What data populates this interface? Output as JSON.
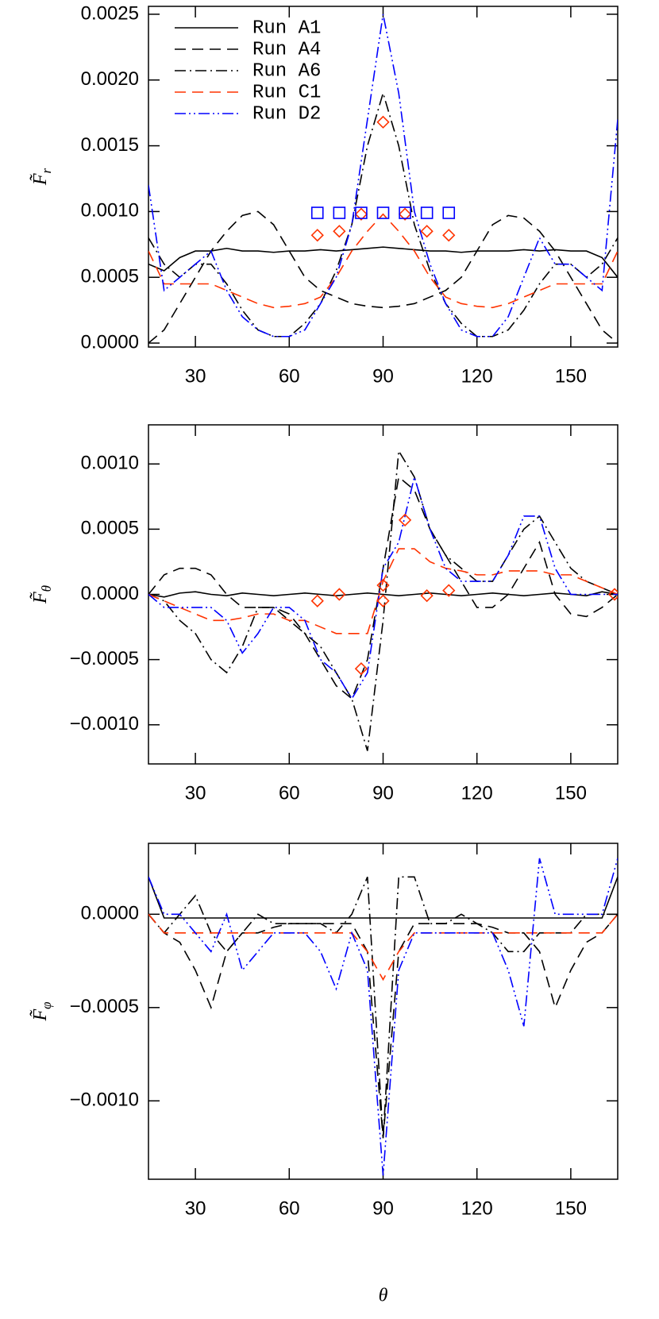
{
  "chart_data": [
    {
      "type": "line",
      "ylabel": "F̃",
      "ylabel_sub": "r",
      "legend": "upper left",
      "xlim": [
        15,
        165
      ],
      "xticks": [
        30,
        60,
        90,
        120,
        150
      ],
      "ylim": [
        -3e-05,
        0.00256
      ],
      "yticks": [
        {
          "value": 0,
          "label": "0.0000"
        },
        {
          "value": 0.0005,
          "label": "0.0005"
        },
        {
          "value": 0.001,
          "label": "0.0010"
        },
        {
          "value": 0.0015,
          "label": "0.0015"
        },
        {
          "value": 0.002,
          "label": "0.0020"
        },
        {
          "value": 0.0025,
          "label": "0.0025"
        }
      ],
      "x": [
        15,
        20,
        25,
        30,
        35,
        40,
        45,
        50,
        55,
        60,
        65,
        70,
        75,
        80,
        85,
        90,
        95,
        100,
        105,
        110,
        115,
        120,
        125,
        130,
        135,
        140,
        145,
        150,
        155,
        160,
        165
      ],
      "series": [
        {
          "name": "Run A1",
          "color": "#000000",
          "dash": "solid",
          "values": [
            0.0006,
            0.00055,
            0.00065,
            0.0007,
            0.0007,
            0.00072,
            0.0007,
            0.0007,
            0.00069,
            0.0007,
            0.0007,
            0.00071,
            0.0007,
            0.00071,
            0.00072,
            0.00073,
            0.00072,
            0.00071,
            0.0007,
            0.0007,
            0.00069,
            0.0007,
            0.0007,
            0.0007,
            0.00071,
            0.0007,
            0.00071,
            0.0007,
            0.0007,
            0.00065,
            0.0005
          ]
        },
        {
          "name": "Run A4",
          "color": "#000000",
          "dash": "dashed",
          "values": [
            0.0,
            0.0001,
            0.0003,
            0.0005,
            0.0007,
            0.00085,
            0.00097,
            0.001,
            0.0009,
            0.0007,
            0.0005,
            0.0004,
            0.00035,
            0.0003,
            0.00028,
            0.00027,
            0.00028,
            0.0003,
            0.00035,
            0.0004,
            0.0005,
            0.0007,
            0.0009,
            0.00097,
            0.00095,
            0.00085,
            0.0007,
            0.0005,
            0.0003,
            0.0001,
            0.0
          ]
        },
        {
          "name": "Run A6",
          "color": "#000000",
          "dash": "dashdot",
          "values": [
            0.0008,
            0.0006,
            0.0005,
            0.0006,
            0.0006,
            0.00045,
            0.00025,
            0.0001,
            5e-05,
            5e-05,
            0.00015,
            0.0003,
            0.00055,
            0.0009,
            0.0015,
            0.0019,
            0.0015,
            0.0009,
            0.00055,
            0.0003,
            0.00015,
            5e-05,
            5e-05,
            0.0001,
            0.00025,
            0.00045,
            0.0006,
            0.0006,
            0.0005,
            0.0006,
            0.0008
          ]
        },
        {
          "name": "Run C1",
          "color": "#ff3300",
          "dash": "dashed",
          "values": [
            0.0007,
            0.00045,
            0.00045,
            0.00045,
            0.00045,
            0.0004,
            0.00035,
            0.0003,
            0.00027,
            0.00028,
            0.0003,
            0.00035,
            0.0005,
            0.0007,
            0.00085,
            0.00098,
            0.00085,
            0.0007,
            0.0005,
            0.00035,
            0.0003,
            0.00028,
            0.00027,
            0.0003,
            0.00035,
            0.0004,
            0.00045,
            0.00045,
            0.00045,
            0.00045,
            0.0007
          ]
        },
        {
          "name": "Run D2",
          "color": "#0000ff",
          "dash": "dashdotdot",
          "values": [
            0.0012,
            0.0004,
            0.0005,
            0.0006,
            0.0007,
            0.0004,
            0.0002,
            0.0001,
            5e-05,
            5e-05,
            0.0001,
            0.0003,
            0.0005,
            0.0009,
            0.0017,
            0.0025,
            0.0019,
            0.001,
            0.0006,
            0.0003,
            0.0001,
            5e-05,
            5e-05,
            0.0002,
            0.0005,
            0.0008,
            0.0006,
            0.0006,
            0.0005,
            0.0004,
            0.0017
          ]
        }
      ],
      "markers": [
        {
          "shape": "diamond",
          "color": "#ff3300",
          "x": [
            69,
            76,
            83,
            90,
            97,
            104,
            111
          ],
          "values": [
            0.00082,
            0.00085,
            0.00098,
            0.00168,
            0.00098,
            0.00085,
            0.00082
          ]
        },
        {
          "shape": "square",
          "color": "#0000ff",
          "x": [
            69,
            76,
            83,
            90,
            97,
            104,
            111
          ],
          "values": [
            0.00099,
            0.00099,
            0.00099,
            0.00099,
            0.00099,
            0.00099,
            0.00099
          ]
        }
      ]
    },
    {
      "type": "line",
      "ylabel": "F̃",
      "ylabel_sub": "θ",
      "xlim": [
        15,
        165
      ],
      "xticks": [
        30,
        60,
        90,
        120,
        150
      ],
      "ylim": [
        -0.0013,
        0.0013
      ],
      "yticks": [
        {
          "value": -0.001,
          "label": "−0.0010"
        },
        {
          "value": -0.0005,
          "label": "−0.0005"
        },
        {
          "value": 0,
          "label": "0.0000"
        },
        {
          "value": 0.0005,
          "label": "0.0005"
        },
        {
          "value": 0.001,
          "label": "0.0010"
        }
      ],
      "x": [
        15,
        20,
        25,
        30,
        35,
        40,
        45,
        50,
        55,
        60,
        65,
        70,
        75,
        80,
        85,
        90,
        95,
        100,
        105,
        110,
        115,
        120,
        125,
        130,
        135,
        140,
        145,
        150,
        155,
        160,
        165
      ],
      "series": [
        {
          "color": "#000000",
          "dash": "solid",
          "values": [
            0.0,
            -2e-05,
            1e-05,
            2e-05,
            0.0,
            -1e-05,
            1e-05,
            0.0,
            -1e-05,
            0.0,
            1e-05,
            0.0,
            -1e-05,
            0.0,
            1e-05,
            0.0,
            -1e-05,
            0.0,
            1e-05,
            0.0,
            -1e-05,
            0.0,
            1e-05,
            0.0,
            -1e-05,
            0.0,
            1e-05,
            0.0,
            -1e-05,
            2e-05,
            0.0
          ]
        },
        {
          "color": "#000000",
          "dash": "dashed",
          "values": [
            0.0,
            0.00015,
            0.0002,
            0.0002,
            0.00015,
            0.0,
            -0.0001,
            -0.0001,
            -0.0001,
            -0.00015,
            -0.0003,
            -0.0005,
            -0.0007,
            -0.0008,
            -0.0005,
            0.0002,
            0.0009,
            0.0008,
            0.0005,
            0.0003,
            0.0001,
            -0.0001,
            -0.0001,
            0.0,
            0.0002,
            0.0004,
            0.0,
            -0.00015,
            -0.00017,
            -0.0001,
            0.0
          ]
        },
        {
          "color": "#000000",
          "dash": "dashdot",
          "values": [
            0.0,
            -5e-05,
            -0.0002,
            -0.0003,
            -0.0005,
            -0.0006,
            -0.0004,
            -0.0001,
            -0.0001,
            -0.0002,
            -0.0003,
            -0.0004,
            -0.0006,
            -0.0008,
            -0.0012,
            -0.0002,
            0.0011,
            0.0009,
            0.0005,
            0.0003,
            0.0002,
            0.0001,
            0.0001,
            0.0003,
            0.0005,
            0.0006,
            0.0004,
            0.0002,
            0.0001,
            5e-05,
            0.0
          ]
        },
        {
          "color": "#ff3300",
          "dash": "dashed",
          "values": [
            0.0,
            -5e-05,
            -0.0001,
            -0.00015,
            -0.0002,
            -0.0002,
            -0.00018,
            -0.00015,
            -0.00015,
            -0.0002,
            -0.0002,
            -0.00025,
            -0.0003,
            -0.0003,
            -0.0003,
            0.0001,
            0.00035,
            0.00035,
            0.00025,
            0.0002,
            0.00018,
            0.00015,
            0.00015,
            0.00018,
            0.00018,
            0.00018,
            0.00015,
            0.00015,
            0.0001,
            5e-05,
            0.0
          ]
        },
        {
          "color": "#0000ff",
          "dash": "dashdotdot",
          "values": [
            0.0,
            -0.0001,
            -0.0001,
            -0.0001,
            -0.0001,
            -0.0002,
            -0.00045,
            -0.0003,
            -0.0001,
            -0.0001,
            -0.0002,
            -0.0005,
            -0.0006,
            -0.0008,
            -0.0006,
            0.0002,
            0.0004,
            0.0009,
            0.0005,
            0.0002,
            0.0001,
            0.0001,
            0.0001,
            0.0003,
            0.0006,
            0.0006,
            0.0002,
            0.0,
            0.0,
            0.0,
            0.0
          ]
        }
      ],
      "markers": [
        {
          "shape": "diamond",
          "color": "#ff3300",
          "x": [
            69,
            76,
            83,
            90,
            90,
            97,
            104,
            111,
            164
          ],
          "values": [
            -5e-05,
            0.0,
            -0.00057,
            -5e-05,
            7e-05,
            0.00057,
            -1e-05,
            3e-05,
            0.0
          ]
        }
      ]
    },
    {
      "type": "line",
      "ylabel": "F̃",
      "ylabel_sub": "φ",
      "xlabel": "θ",
      "xlim": [
        15,
        165
      ],
      "xticks": [
        30,
        60,
        90,
        120,
        150
      ],
      "ylim": [
        -0.00142,
        0.00038
      ],
      "yticks": [
        {
          "value": -0.001,
          "label": "−0.0010"
        },
        {
          "value": -0.0005,
          "label": "−0.0005"
        },
        {
          "value": 0,
          "label": "0.0000"
        }
      ],
      "x": [
        15,
        20,
        25,
        30,
        35,
        40,
        45,
        50,
        55,
        60,
        65,
        70,
        75,
        80,
        85,
        90,
        95,
        100,
        105,
        110,
        115,
        120,
        125,
        130,
        135,
        140,
        145,
        150,
        155,
        160,
        165
      ],
      "series": [
        {
          "color": "#000000",
          "dash": "solid",
          "values": [
            0.0002,
            -2e-05,
            -2e-05,
            -2e-05,
            -2e-05,
            -2e-05,
            -2e-05,
            -2e-05,
            -2e-05,
            -2e-05,
            -2e-05,
            -2e-05,
            -2e-05,
            -2e-05,
            -2e-05,
            -2e-05,
            -2e-05,
            -2e-05,
            -2e-05,
            -2e-05,
            -2e-05,
            -2e-05,
            -2e-05,
            -2e-05,
            -2e-05,
            -2e-05,
            -2e-05,
            -2e-05,
            -2e-05,
            -2e-05,
            0.0002
          ]
        },
        {
          "color": "#000000",
          "dash": "dashed",
          "values": [
            0.0,
            -0.0001,
            -0.00015,
            -0.0003,
            -0.0005,
            -0.0002,
            -0.0001,
            -0.0001,
            -7e-05,
            -5e-05,
            -5e-05,
            -5e-05,
            -5e-05,
            -5e-05,
            -0.0002,
            -0.0012,
            -0.0002,
            -5e-05,
            -5e-05,
            -5e-05,
            -5e-05,
            -5e-05,
            -7e-05,
            -0.0001,
            -0.0001,
            -0.0002,
            -0.0005,
            -0.0003,
            -0.00015,
            -0.0001,
            0.0
          ]
        },
        {
          "color": "#000000",
          "dash": "dashdot",
          "values": [
            0.0,
            -0.0001,
            0.0,
            0.0001,
            -0.0001,
            -0.0002,
            -0.0001,
            0.0,
            -5e-05,
            -5e-05,
            -5e-05,
            -5e-05,
            -0.0001,
            0.0,
            0.0002,
            -0.0012,
            0.0002,
            0.0002,
            -5e-05,
            -5e-05,
            0.0,
            -5e-05,
            -0.0001,
            -0.0002,
            -0.0002,
            -0.0001,
            -0.0001,
            -0.0001,
            0.0,
            0.0,
            0.0
          ]
        },
        {
          "color": "#ff3300",
          "dash": "dashed",
          "values": [
            0.0,
            -0.0001,
            -0.0001,
            -0.0001,
            -0.0001,
            -0.0001,
            -0.0001,
            -0.0001,
            -0.0001,
            -0.0001,
            -0.0001,
            -0.0001,
            -0.0001,
            -0.0001,
            -0.0002,
            -0.00035,
            -0.0002,
            -0.0001,
            -0.0001,
            -0.0001,
            -0.0001,
            -0.0001,
            -0.0001,
            -0.0001,
            -0.0001,
            -0.0001,
            -0.0001,
            -0.0001,
            -0.0001,
            -0.0001,
            0.0
          ]
        },
        {
          "color": "#0000ff",
          "dash": "dashdotdot",
          "values": [
            0.0002,
            0.0,
            0.0,
            -0.0001,
            -0.0002,
            0.0,
            -0.0003,
            -0.0002,
            -0.0001,
            -0.0001,
            -0.0001,
            -0.0002,
            -0.0004,
            -0.0001,
            -0.0003,
            -0.0014,
            -0.0003,
            -0.0001,
            -0.0001,
            -0.0001,
            -0.0001,
            -0.0001,
            -0.0001,
            -0.0003,
            -0.0006,
            0.0003,
            0.0,
            0.0,
            0.0,
            0.0,
            0.0003
          ]
        }
      ]
    }
  ]
}
